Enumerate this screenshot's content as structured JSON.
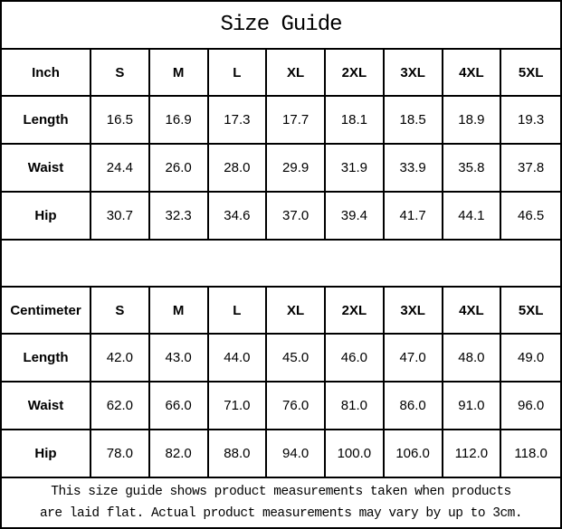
{
  "title": "Size Guide",
  "sizes": [
    "S",
    "M",
    "L",
    "XL",
    "2XL",
    "3XL",
    "4XL",
    "5XL"
  ],
  "inch": {
    "unit": "Inch",
    "rows": [
      {
        "label": "Length",
        "values": [
          "16.5",
          "16.9",
          "17.3",
          "17.7",
          "18.1",
          "18.5",
          "18.9",
          "19.3"
        ]
      },
      {
        "label": "Waist",
        "values": [
          "24.4",
          "26.0",
          "28.0",
          "29.9",
          "31.9",
          "33.9",
          "35.8",
          "37.8"
        ]
      },
      {
        "label": "Hip",
        "values": [
          "30.7",
          "32.3",
          "34.6",
          "37.0",
          "39.4",
          "41.7",
          "44.1",
          "46.5"
        ]
      }
    ]
  },
  "cm": {
    "unit": "Centimeter",
    "rows": [
      {
        "label": "Length",
        "values": [
          "42.0",
          "43.0",
          "44.0",
          "45.0",
          "46.0",
          "47.0",
          "48.0",
          "49.0"
        ]
      },
      {
        "label": "Waist",
        "values": [
          "62.0",
          "66.0",
          "71.0",
          "76.0",
          "81.0",
          "86.0",
          "91.0",
          "96.0"
        ]
      },
      {
        "label": "Hip",
        "values": [
          "78.0",
          "82.0",
          "88.0",
          "94.0",
          "100.0",
          "106.0",
          "112.0",
          "118.0"
        ]
      }
    ]
  },
  "footer": {
    "line1": "This size guide shows product measurements taken when products",
    "line2": "are laid flat. Actual product measurements may vary by up to 3cm."
  },
  "colors": {
    "border": "#000000",
    "text": "#000000",
    "background": "#ffffff"
  }
}
